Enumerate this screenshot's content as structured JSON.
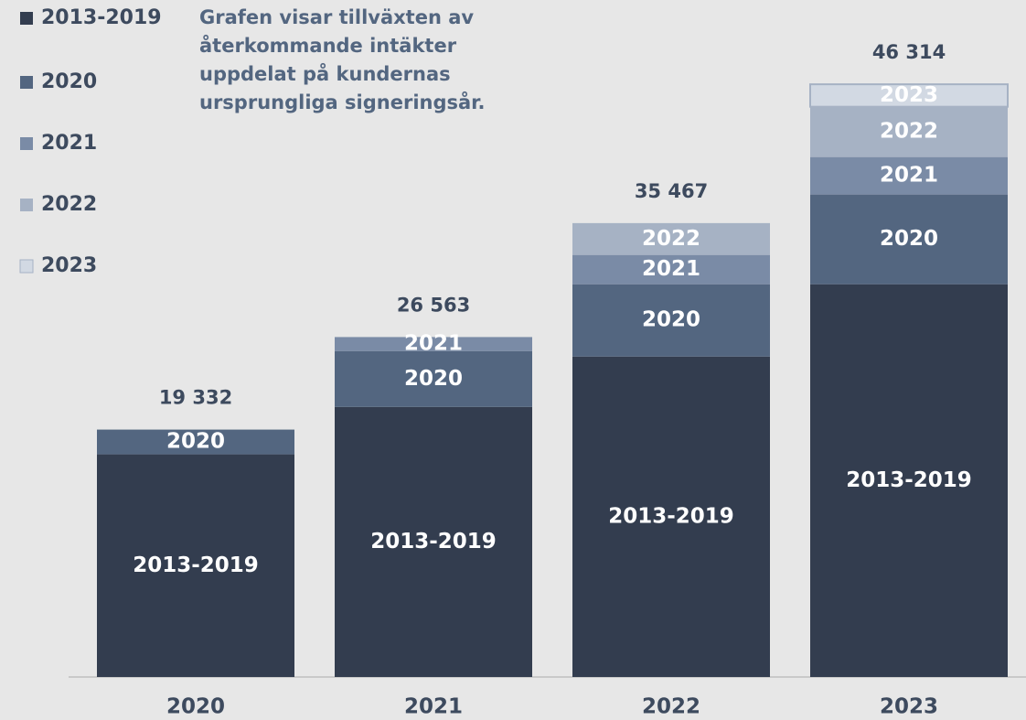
{
  "chart_data": {
    "type": "stacked_bar",
    "annotation": [
      "Grafen visar tillväxten av",
      "återkommande intäkter",
      "uppdelat på kundernas",
      "ursprungliga signeringsår."
    ],
    "categories": [
      "2020",
      "2021",
      "2022",
      "2023"
    ],
    "series": [
      {
        "name": "2013-2019",
        "color": "#333d4f",
        "values": [
          17400,
          21100,
          25040,
          30690
        ]
      },
      {
        "name": "2020",
        "color": "#536680",
        "values": [
          1932,
          4370,
          5650,
          7010
        ]
      },
      {
        "name": "2021",
        "color": "#7a8ba6",
        "values": [
          null,
          1093,
          2290,
          2930
        ]
      },
      {
        "name": "2022",
        "color": "#a6b2c4",
        "values": [
          null,
          null,
          2487,
          3930
        ]
      },
      {
        "name": "2023",
        "color": "#d2d9e3",
        "values": [
          null,
          null,
          null,
          1754
        ]
      }
    ],
    "totals": [
      19332,
      26563,
      35467,
      46314
    ],
    "total_labels": [
      "19 332",
      "26 563",
      "35 467",
      "46 314"
    ],
    "ylim": [
      0,
      52900
    ]
  }
}
